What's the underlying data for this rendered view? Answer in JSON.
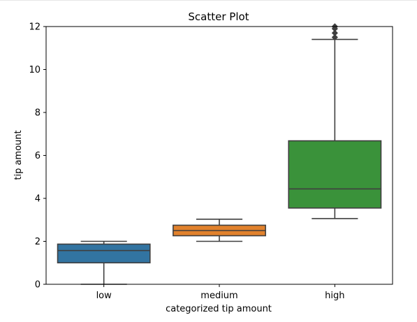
{
  "chart_data": {
    "type": "box",
    "title": "Scatter Plot",
    "xlabel": "categorized tip amount",
    "ylabel": "tip amount",
    "ylim": [
      0,
      12
    ],
    "yticks": [
      0,
      2,
      4,
      6,
      8,
      10,
      12
    ],
    "grid": false,
    "categories": [
      "low",
      "medium",
      "high"
    ],
    "boxes": [
      {
        "category": "low",
        "whisker_low": 0.0,
        "q1": 1.0,
        "median": 1.57,
        "q3": 1.87,
        "whisker_high": 2.0,
        "outliers": [],
        "color": "#3274a1"
      },
      {
        "category": "medium",
        "whisker_low": 2.0,
        "q1": 2.26,
        "median": 2.5,
        "q3": 2.75,
        "whisker_high": 3.03,
        "outliers": [],
        "color": "#e1812c"
      },
      {
        "category": "high",
        "whisker_low": 3.06,
        "q1": 3.55,
        "median": 4.44,
        "q3": 6.68,
        "whisker_high": 11.4,
        "outliers": [
          11.5,
          11.7,
          11.9,
          12.0,
          12.1
        ],
        "color": "#3a923a"
      }
    ]
  }
}
